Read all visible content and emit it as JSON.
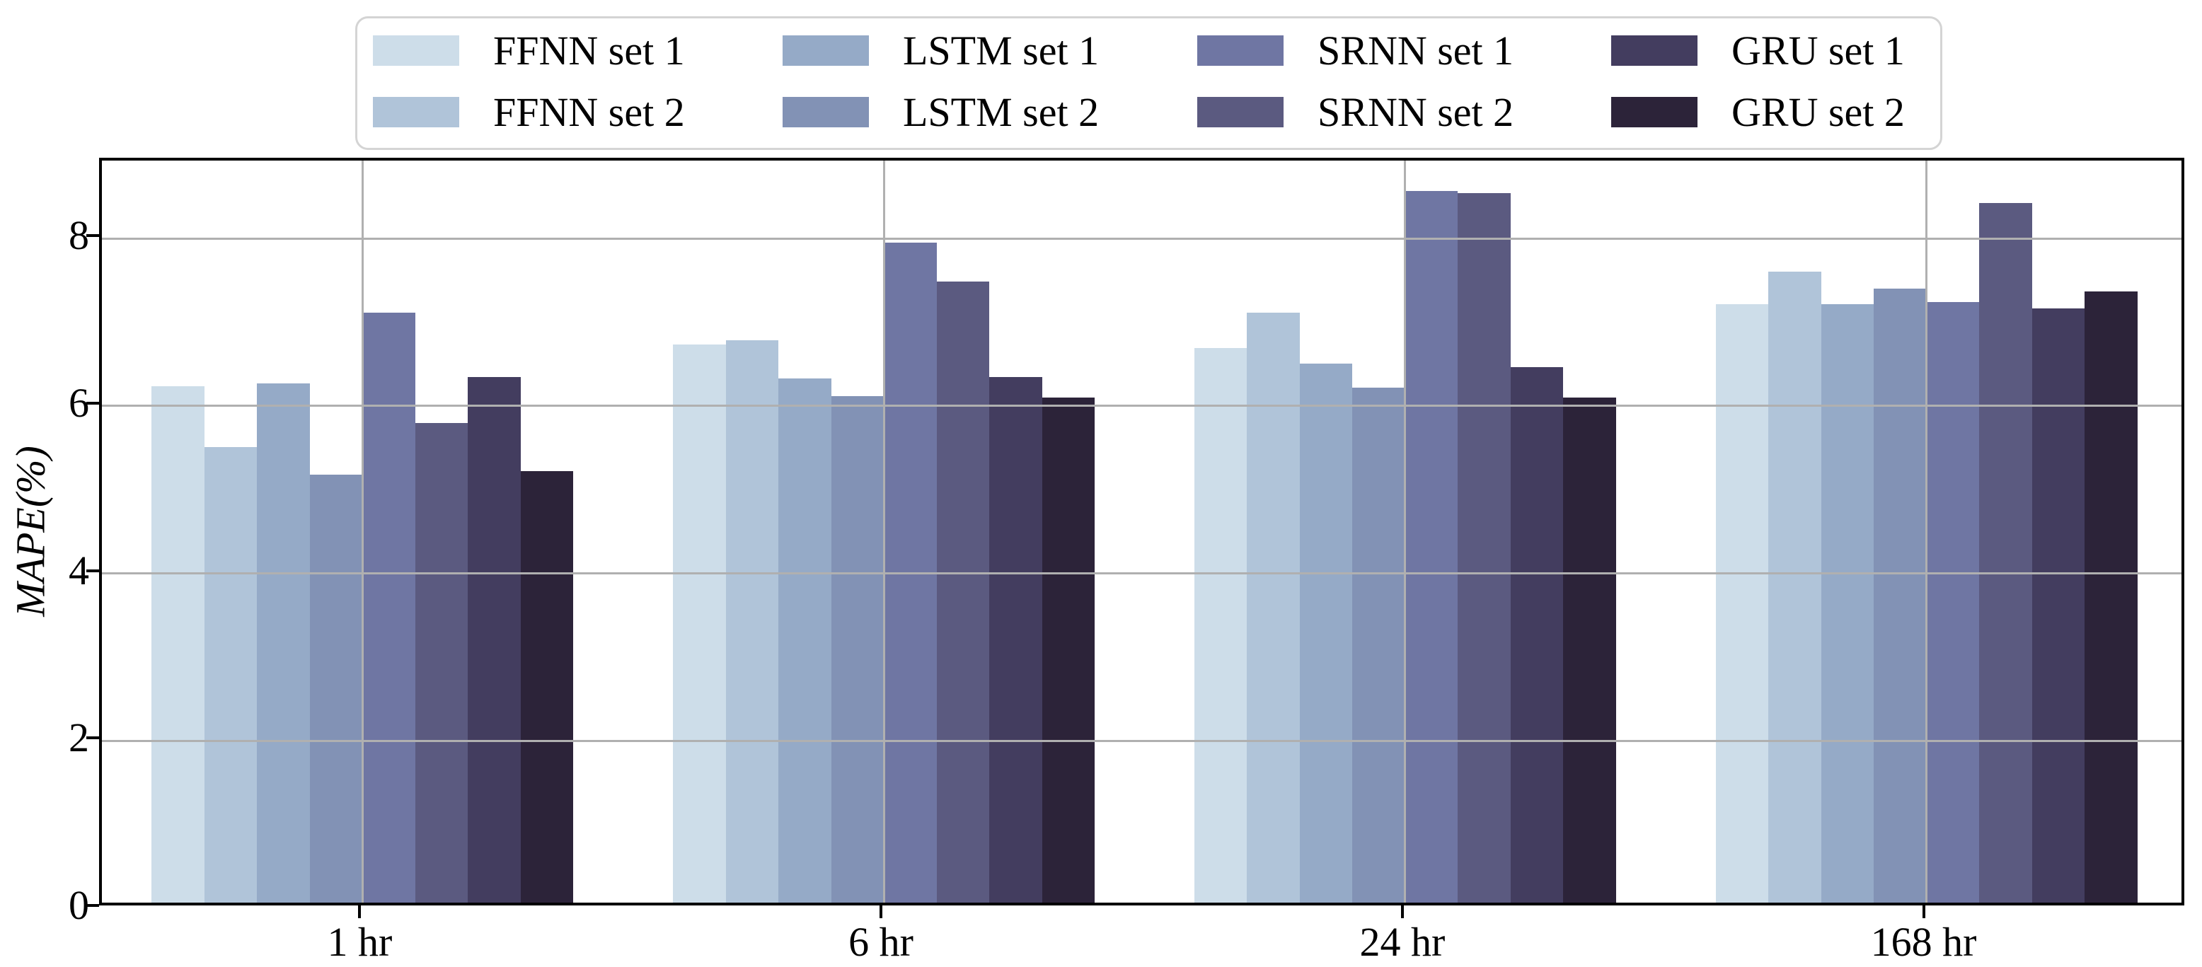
{
  "chart_data": {
    "type": "bar",
    "title": "",
    "categories": [
      "1 hr",
      "6 hr",
      "24 hr",
      "168 hr"
    ],
    "series": [
      {
        "name": "FFNN set 1",
        "color": "#cddde9",
        "values": [
          6.17,
          6.67,
          6.62,
          7.15
        ]
      },
      {
        "name": "FFNN set 2",
        "color": "#b0c4d9",
        "values": [
          5.44,
          6.72,
          7.05,
          7.54
        ]
      },
      {
        "name": "LSTM set 1",
        "color": "#95aac7",
        "values": [
          6.2,
          6.26,
          6.44,
          7.15
        ]
      },
      {
        "name": "LSTM set 2",
        "color": "#8292b5",
        "values": [
          5.11,
          6.05,
          6.15,
          7.33
        ]
      },
      {
        "name": "SRNN set 1",
        "color": "#6f76a3",
        "values": [
          7.05,
          7.88,
          8.5,
          7.17
        ]
      },
      {
        "name": "SRNN set 2",
        "color": "#5b5a80",
        "values": [
          5.73,
          7.42,
          8.47,
          8.36
        ]
      },
      {
        "name": "GRU set 1",
        "color": "#433d5f",
        "values": [
          6.28,
          6.28,
          6.4,
          7.1
        ]
      },
      {
        "name": "GRU set 2",
        "color": "#2c2339",
        "values": [
          5.15,
          6.03,
          6.03,
          7.3
        ]
      }
    ],
    "xlabel": "",
    "ylabel": "MAPE(%)",
    "ylim": [
      0,
      8.93
    ],
    "yticks": [
      0,
      2,
      4,
      6,
      8
    ],
    "grid": true,
    "legend_position": "top"
  },
  "colors": {
    "grid": "#b0b0b0",
    "axis": "#000000",
    "legend_border": "#d4d4d4",
    "background": "#ffffff"
  }
}
